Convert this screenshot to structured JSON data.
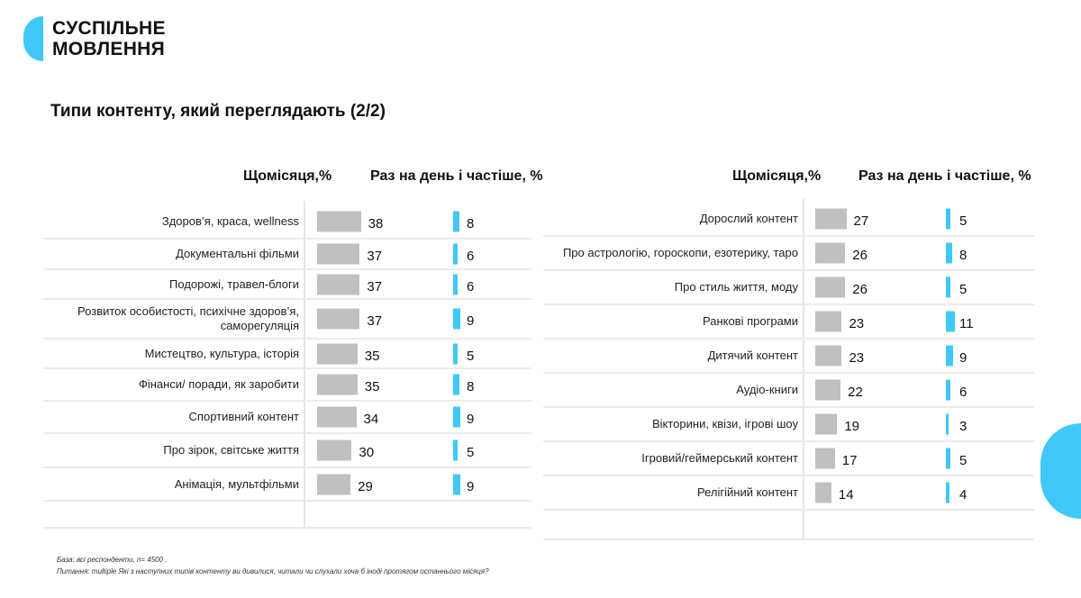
{
  "brand": {
    "line1": "СУСПІЛЬНЕ",
    "line2": "МОВЛЕННЯ",
    "accent": "#40c8f8"
  },
  "title": "Типи контенту, який переглядають (2/2)",
  "chart_data": [
    {
      "type": "bar",
      "headers": {
        "monthly": "Щомісяця,%",
        "daily": "Раз на день і частіше, %"
      },
      "categories": [
        "Здоров’я, краса, wellness",
        "Документальні фільми",
        "Подорожі, травел-блоги",
        "Розвиток особистості, психічне здоров’я, саморегуляція",
        "Мистецтво, культура, історія",
        "Фінанси/ поради, як заробити",
        "Спортивний контент",
        "Про зірок, світське життя",
        "Анімація, мультфільми"
      ],
      "series": [
        {
          "name": "Щомісяця,%",
          "color": "#c0c0c0",
          "values": [
            38,
            37,
            37,
            37,
            35,
            35,
            34,
            30,
            29
          ]
        },
        {
          "name": "Раз на день і частіше, %",
          "color": "#40c8f8",
          "values": [
            8,
            6,
            6,
            9,
            5,
            8,
            9,
            5,
            9
          ]
        }
      ]
    },
    {
      "type": "bar",
      "headers": {
        "monthly": "Щомісяця,%",
        "daily": "Раз на день і частіше, %"
      },
      "categories": [
        "Дорослий контент",
        "Про астрологію, гороскопи, езотерику, таро",
        "Про стиль життя, моду",
        "Ранкові програми",
        "Дитячий контент",
        "Аудіо-книги",
        "Вікторини, квізи, ігрові шоу",
        "Ігровий/геймерський контент",
        "Релігійний контент"
      ],
      "series": [
        {
          "name": "Щомісяця,%",
          "color": "#c0c0c0",
          "values": [
            27,
            26,
            26,
            23,
            23,
            22,
            19,
            17,
            14
          ]
        },
        {
          "name": "Раз на день і частіше, %",
          "color": "#40c8f8",
          "values": [
            5,
            8,
            5,
            11,
            9,
            6,
            3,
            5,
            4
          ]
        }
      ]
    }
  ],
  "footnote": {
    "base": "База: всі респонденти, n= 4500 ,",
    "question": "Питання: multiple Які з наступних типів контенту ви дивилися, читали чи слухали хоча б іноді протягом останнього місяця?"
  }
}
